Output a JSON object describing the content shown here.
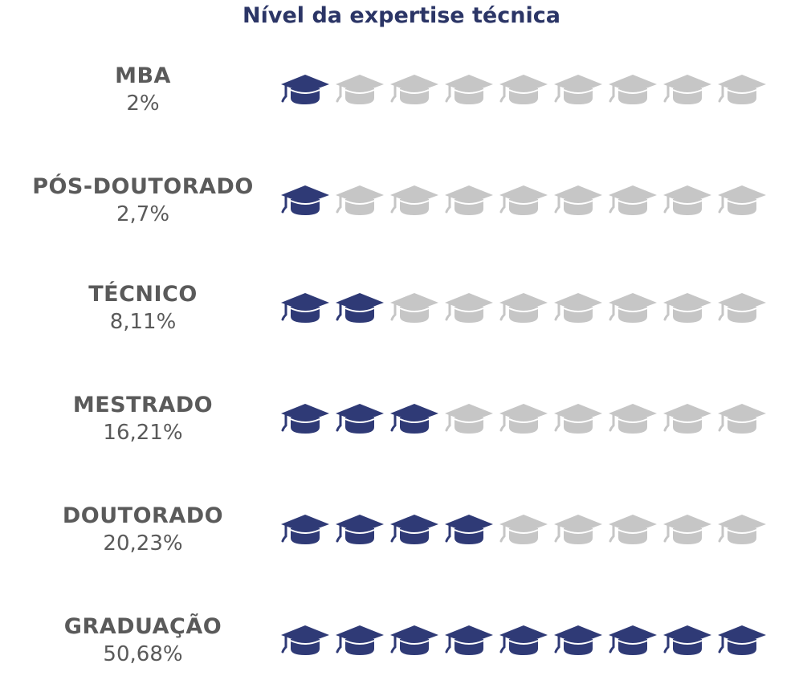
{
  "chart_data": {
    "type": "pictograph",
    "title": "Nível da expertise técnica",
    "icon": "graduation-cap-icon",
    "icons_per_row": 9,
    "colors": {
      "filled": "#2f3a76",
      "empty": "#c6c6c6",
      "label": "#5a5a5a",
      "title": "#2b3566"
    },
    "categories": [
      "MBA",
      "PÓS-DOUTORADO",
      "TÉCNICO",
      "MESTRADO",
      "DOUTORADO",
      "GRADUAÇÃO"
    ],
    "value_labels": [
      "2%",
      "2,7%",
      "8,11%",
      "16,21%",
      "20,23%",
      "50,68%"
    ],
    "values": [
      2,
      2.7,
      8.11,
      16.21,
      20.23,
      50.68
    ],
    "filled_icons": [
      1,
      1,
      2,
      3,
      4,
      9
    ]
  }
}
